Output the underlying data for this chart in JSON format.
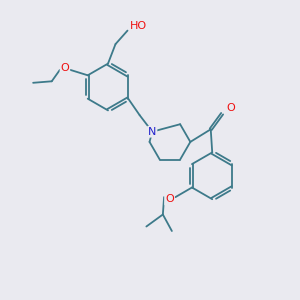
{
  "bg_color": "#eaeaf0",
  "bond_color": "#3d7a8a",
  "atom_colors": {
    "O": "#ee1111",
    "N": "#2222cc",
    "C": "#000000",
    "H": "#777777"
  },
  "bond_width": 1.3,
  "font_size_atom": 7.5,
  "fig_size": [
    3.0,
    3.0
  ],
  "dpi": 100,
  "xlim": [
    0,
    10
  ],
  "ylim": [
    0,
    10
  ]
}
